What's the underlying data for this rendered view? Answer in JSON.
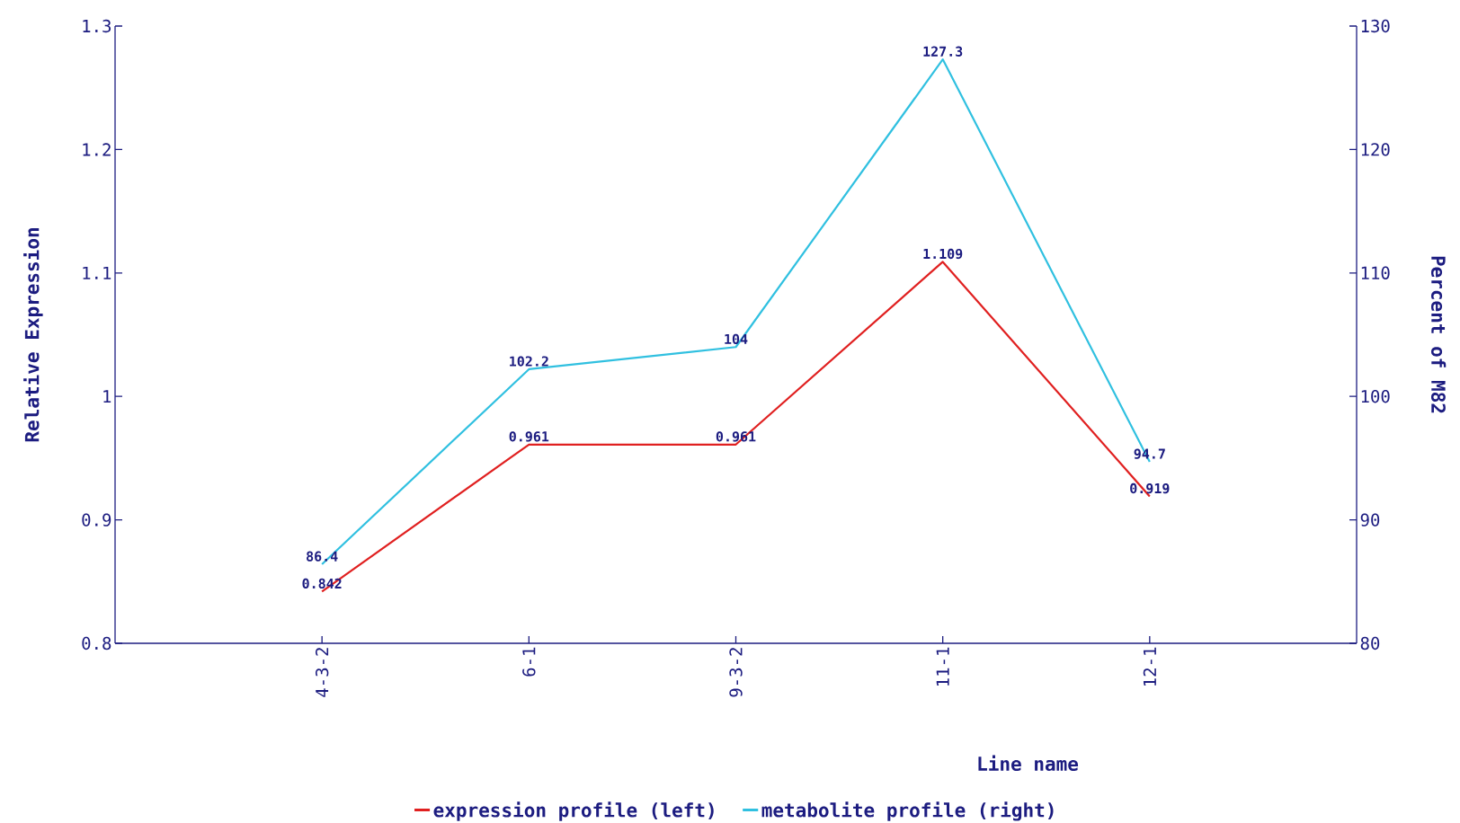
{
  "chart_data": {
    "type": "line",
    "categories": [
      "4-3-2",
      "6-1",
      "9-3-2",
      "11-1",
      "12-1"
    ],
    "series": [
      {
        "name": "expression profile (left)",
        "color": "#e02020",
        "values": [
          0.842,
          0.961,
          0.961,
          1.109,
          0.919
        ]
      },
      {
        "name": "metabolite profile (right)",
        "color": "#30c0e0",
        "values": [
          86.4,
          102.2,
          104,
          127.3,
          94.7
        ],
        "axis": "y2"
      }
    ],
    "xlabel": "Line name",
    "ylabel": "Relative Expression",
    "y2label": "Percent of M82",
    "ylim": [
      0.8,
      1.3
    ],
    "yticks": [
      0.8,
      0.9,
      1,
      1.1,
      1.2,
      1.3
    ],
    "y2lim": [
      80,
      130
    ],
    "y2ticks": [
      80,
      90,
      100,
      110,
      120,
      130
    ],
    "data_labels": true,
    "legend": "bottom",
    "grid": false,
    "marker": "none",
    "line_style": "solid"
  }
}
